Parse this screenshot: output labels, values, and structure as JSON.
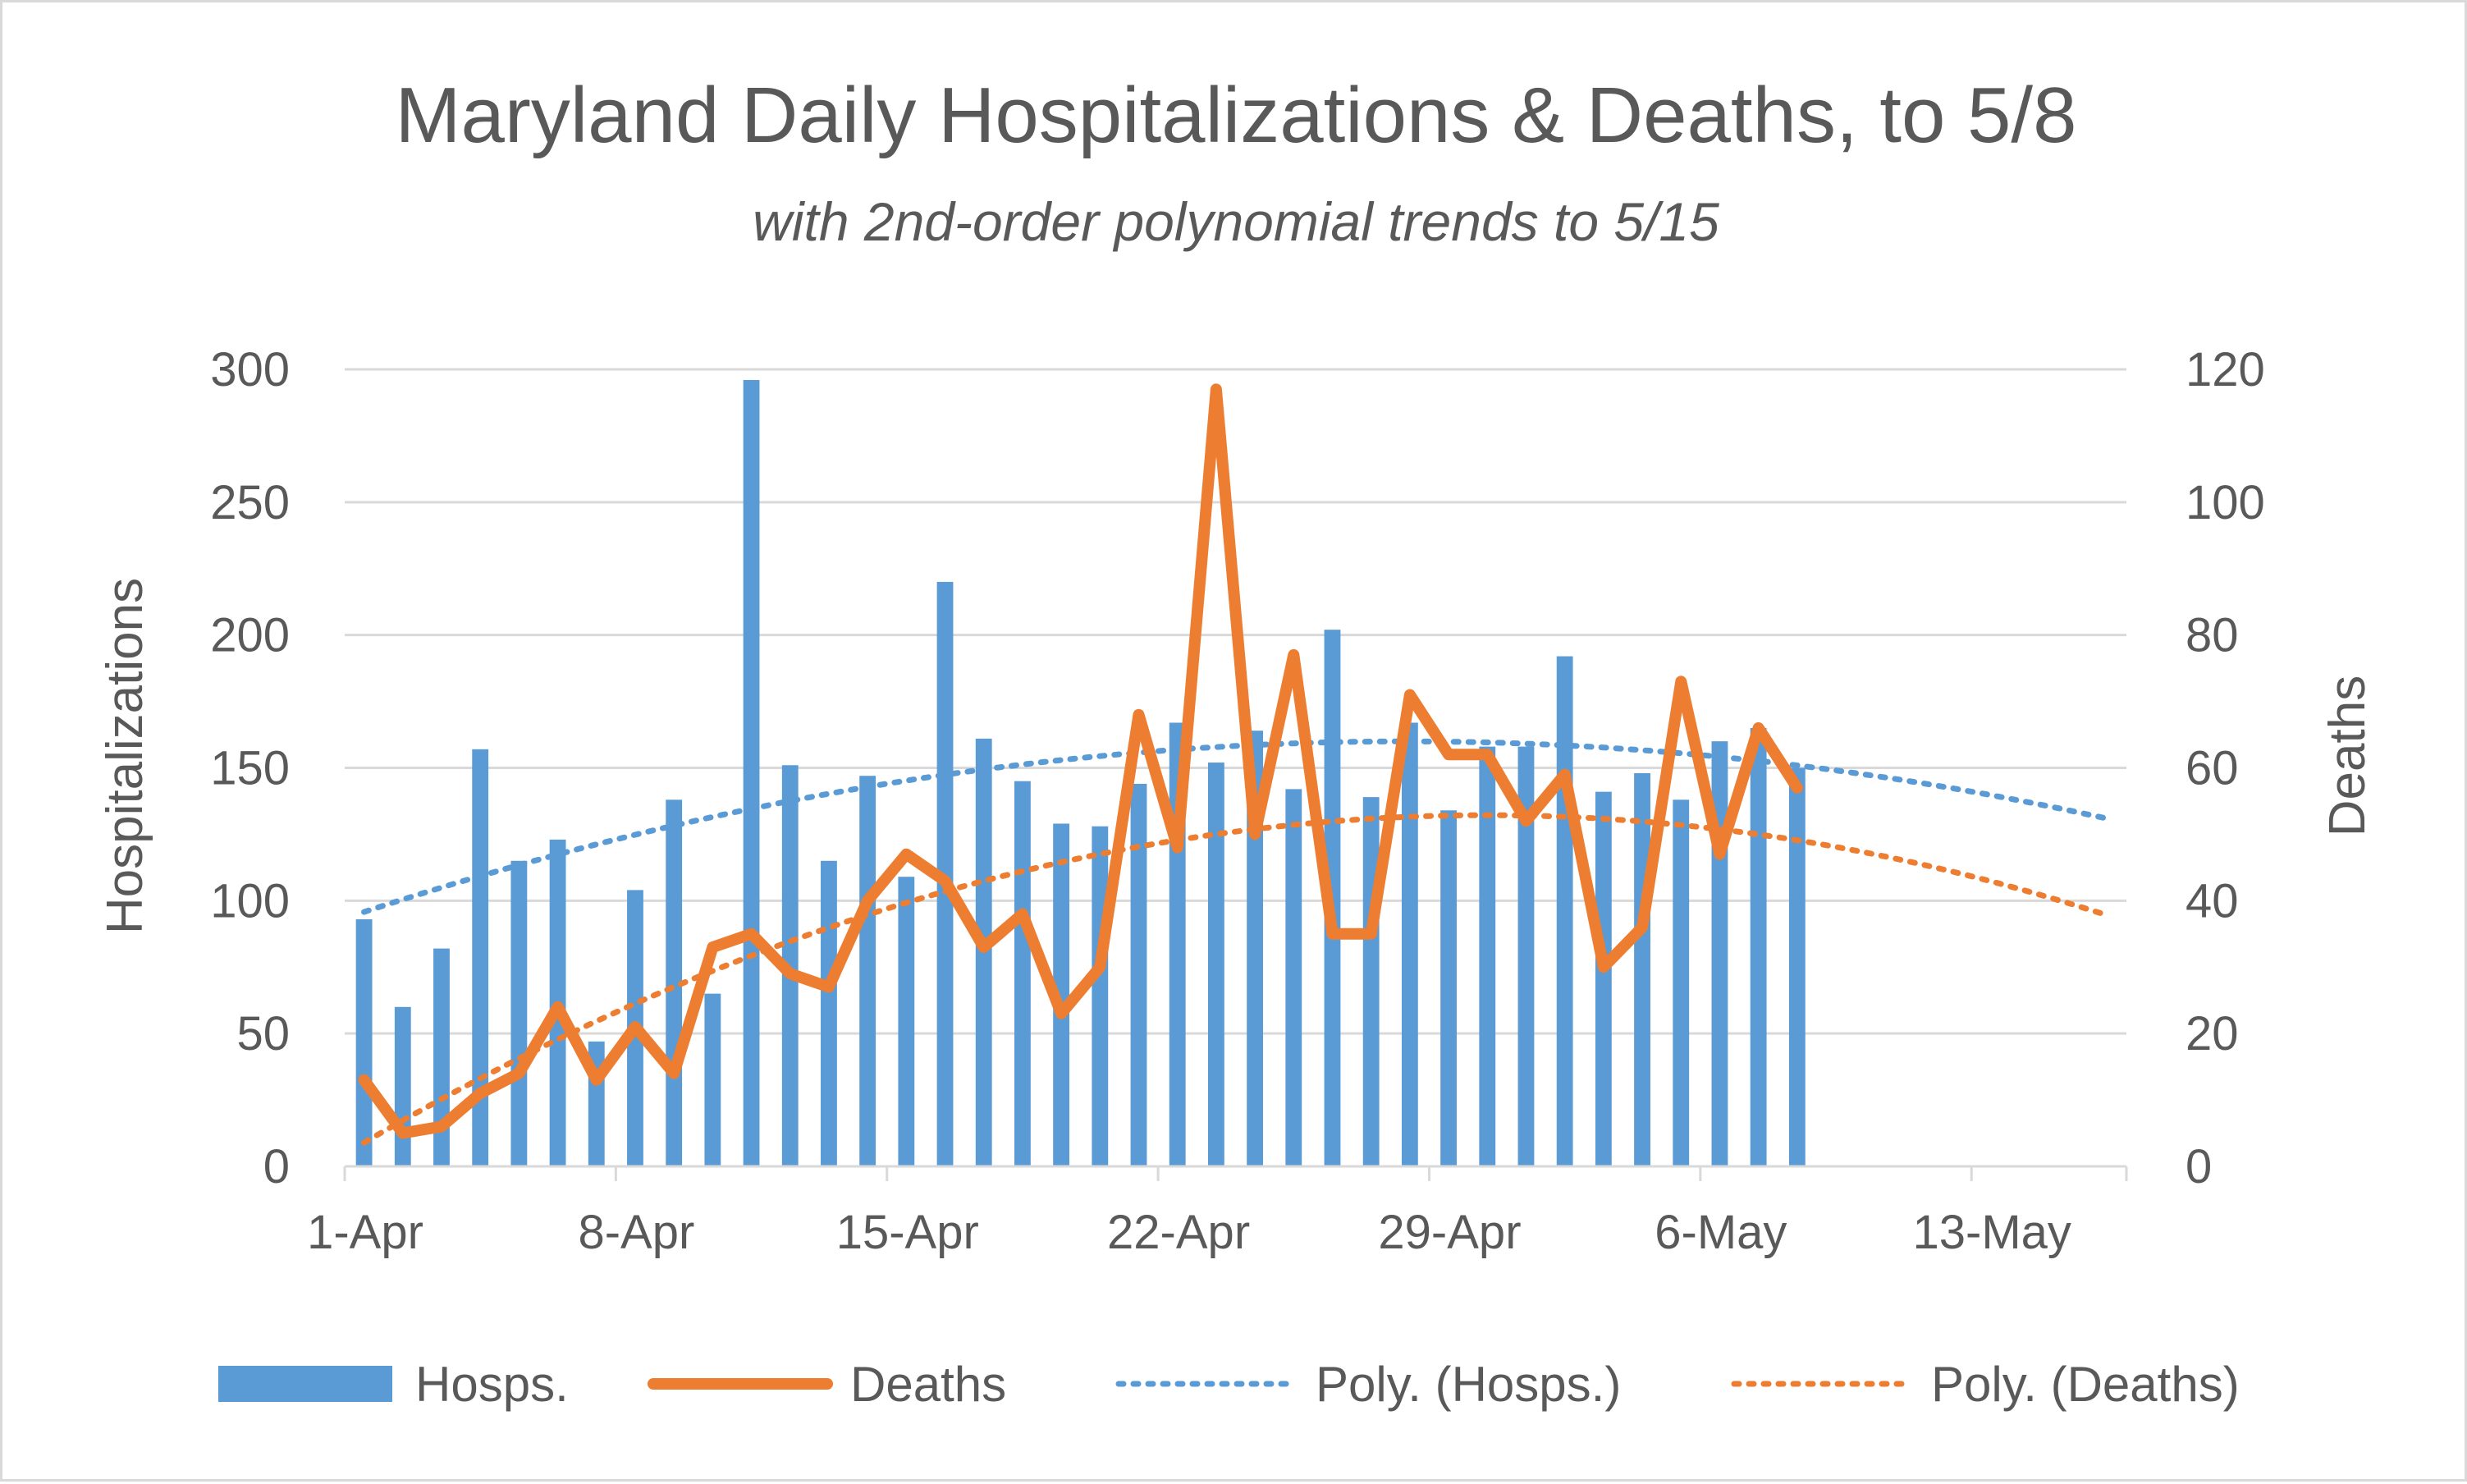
{
  "chart_data": {
    "type": "bar",
    "title": "Maryland Daily Hospitalizations & Deaths, to 5/8",
    "subtitle": "with 2nd-order polynomial trends to 5/15",
    "ylabel": "Hospitalizations",
    "y2label": "Deaths",
    "ylim": [
      0,
      300
    ],
    "y2lim": [
      0,
      120
    ],
    "yticks": [
      "0",
      "50",
      "100",
      "150",
      "200",
      "250",
      "300"
    ],
    "y2ticks": [
      "0",
      "20",
      "40",
      "60",
      "80",
      "100",
      "120"
    ],
    "xticks": [
      "1-Apr",
      "8-Apr",
      "15-Apr",
      "22-Apr",
      "29-Apr",
      "6-May",
      "13-May"
    ],
    "x_range_days": [
      1,
      46
    ],
    "grid": true,
    "legend_position": "bottom",
    "colors": {
      "hosps": "#5b9bd5",
      "deaths": "#ed7d31"
    },
    "series": [
      {
        "name": "Hosps.",
        "type": "bar",
        "axis": "left",
        "start_day": 1,
        "values": [
          93,
          60,
          82,
          157,
          115,
          123,
          47,
          104,
          138,
          65,
          296,
          151,
          115,
          147,
          109,
          220,
          161,
          145,
          129,
          128,
          144,
          167,
          152,
          164,
          142,
          202,
          139,
          167,
          134,
          158,
          158,
          192,
          141,
          148,
          138,
          160,
          165,
          150
        ]
      },
      {
        "name": "Deaths",
        "type": "line",
        "axis": "right",
        "start_day": 1,
        "values": [
          13,
          5,
          6,
          11,
          14,
          24,
          13,
          21,
          14,
          33,
          35,
          29,
          27,
          40,
          47,
          43,
          33,
          38,
          23,
          30,
          68,
          48,
          117,
          50,
          77,
          35,
          35,
          71,
          62,
          62,
          52,
          59,
          30,
          36,
          73,
          47,
          66,
          57
        ]
      },
      {
        "name": "Poly. (Hosps.)",
        "type": "trend",
        "axis": "left",
        "start_day": 1,
        "coefficients": [
          90.9,
          4.95,
          -0.0887
        ]
      },
      {
        "name": "Poly. (Deaths)",
        "type": "trend",
        "axis": "right",
        "start_day": 1,
        "coefficients": [
          0.1,
          3.52,
          -0.0587
        ]
      }
    ]
  }
}
